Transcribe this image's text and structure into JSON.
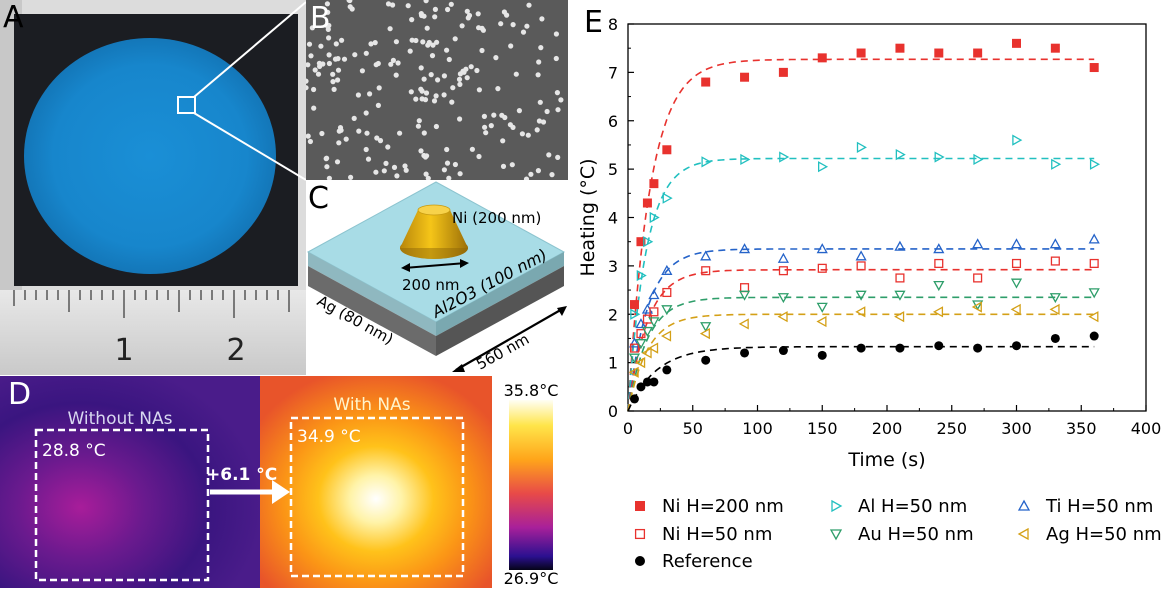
{
  "panels": {
    "a": "A",
    "b": "B",
    "c": "C",
    "d": "D",
    "e": "E"
  },
  "photo": {
    "ruler_labels": [
      "1",
      "2"
    ]
  },
  "schematic": {
    "label_ni": "Ni (200 nm)",
    "label_diameter": "200 nm",
    "label_al2o3": "Al2O3 (100 nm)",
    "label_ag": "Ag (80 nm)",
    "label_pitch": "560 nm"
  },
  "thermal": {
    "without_title": "Without NAs",
    "with_title": "With NAs",
    "without_temp": "28.8 °C",
    "with_temp": "34.9 °C",
    "delta": "+6.1 °C",
    "scale_max": "35.8°C",
    "scale_min": "26.9°C"
  },
  "chart_data": {
    "type": "scatter",
    "xlabel": "Time (s)",
    "ylabel": "Heating (°C)",
    "xlim": [
      0,
      400
    ],
    "ylim": [
      0,
      8
    ],
    "xticks": [
      0,
      50,
      100,
      150,
      200,
      250,
      300,
      350,
      400
    ],
    "yticks": [
      0,
      1,
      2,
      3,
      4,
      5,
      6,
      7,
      8
    ],
    "grid": false,
    "legend_position": "bottom",
    "series": [
      {
        "name": "Ni H=200 nm",
        "color": "#e8322e",
        "marker": "square-filled",
        "x": [
          5,
          10,
          15,
          20,
          30,
          60,
          90,
          120,
          150,
          180,
          210,
          240,
          270,
          300,
          330,
          360
        ],
        "y": [
          2.2,
          3.5,
          4.3,
          4.7,
          5.4,
          6.8,
          6.9,
          7.0,
          7.3,
          7.4,
          7.5,
          7.4,
          7.4,
          7.6,
          7.5,
          7.1
        ],
        "fit": {
          "plateau": 7.27,
          "tau": 17
        }
      },
      {
        "name": "Al H=50 nm",
        "color": "#22c0c0",
        "marker": "triangle-right",
        "x": [
          5,
          10,
          15,
          20,
          30,
          60,
          90,
          120,
          150,
          180,
          210,
          240,
          270,
          300,
          330,
          360
        ],
        "y": [
          2.0,
          2.8,
          3.5,
          4.0,
          4.4,
          5.15,
          5.2,
          5.25,
          5.05,
          5.45,
          5.3,
          5.25,
          5.2,
          5.6,
          5.1,
          5.1
        ],
        "fit": {
          "plateau": 5.22,
          "tau": 14
        }
      },
      {
        "name": "Ti H=50 nm",
        "color": "#2563c9",
        "marker": "triangle-up",
        "x": [
          5,
          10,
          15,
          20,
          30,
          60,
          90,
          120,
          150,
          180,
          210,
          240,
          270,
          300,
          330,
          360
        ],
        "y": [
          1.4,
          1.8,
          2.1,
          2.4,
          2.9,
          3.2,
          3.35,
          3.15,
          3.35,
          3.2,
          3.4,
          3.35,
          3.45,
          3.45,
          3.45,
          3.55
        ],
        "fit": {
          "plateau": 3.35,
          "tau": 15
        }
      },
      {
        "name": "Ni H=50 nm",
        "color": "#e8322e",
        "marker": "square-open",
        "x": [
          5,
          10,
          15,
          20,
          30,
          60,
          90,
          120,
          150,
          180,
          210,
          240,
          270,
          300,
          330,
          360
        ],
        "y": [
          1.3,
          1.6,
          1.9,
          2.05,
          2.45,
          2.9,
          2.55,
          2.9,
          2.95,
          3.0,
          2.75,
          3.05,
          2.75,
          3.05,
          3.1,
          3.05
        ],
        "fit": {
          "plateau": 2.92,
          "tau": 15
        }
      },
      {
        "name": "Au H=50 nm",
        "color": "#2e9e6a",
        "marker": "triangle-down",
        "x": [
          5,
          10,
          15,
          20,
          30,
          60,
          90,
          120,
          150,
          180,
          210,
          240,
          270,
          300,
          330,
          360
        ],
        "y": [
          1.1,
          1.4,
          1.65,
          1.85,
          2.1,
          1.75,
          2.4,
          2.35,
          2.15,
          2.4,
          2.4,
          2.6,
          2.2,
          2.65,
          2.35,
          2.45
        ],
        "fit": {
          "plateau": 2.35,
          "tau": 15
        }
      },
      {
        "name": "Ag H=50 nm",
        "color": "#d4a017",
        "marker": "triangle-left",
        "x": [
          5,
          10,
          15,
          20,
          30,
          60,
          90,
          120,
          150,
          180,
          210,
          240,
          270,
          300,
          330,
          360
        ],
        "y": [
          0.8,
          1.0,
          1.2,
          1.3,
          1.55,
          1.6,
          1.8,
          1.95,
          1.85,
          2.05,
          1.95,
          2.05,
          2.15,
          2.1,
          2.1,
          1.95
        ],
        "fit": {
          "plateau": 2.0,
          "tau": 15
        }
      },
      {
        "name": "Reference",
        "color": "#000000",
        "marker": "circle-filled",
        "x": [
          5,
          10,
          15,
          20,
          30,
          60,
          90,
          120,
          150,
          180,
          210,
          240,
          270,
          300,
          330,
          360
        ],
        "y": [
          0.25,
          0.5,
          0.6,
          0.6,
          0.85,
          1.05,
          1.2,
          1.25,
          1.15,
          1.3,
          1.3,
          1.35,
          1.3,
          1.35,
          1.5,
          1.55
        ],
        "fit": {
          "plateau": 1.33,
          "tau": 22
        }
      }
    ],
    "legend_order": [
      0,
      1,
      2,
      3,
      4,
      5,
      6
    ]
  }
}
